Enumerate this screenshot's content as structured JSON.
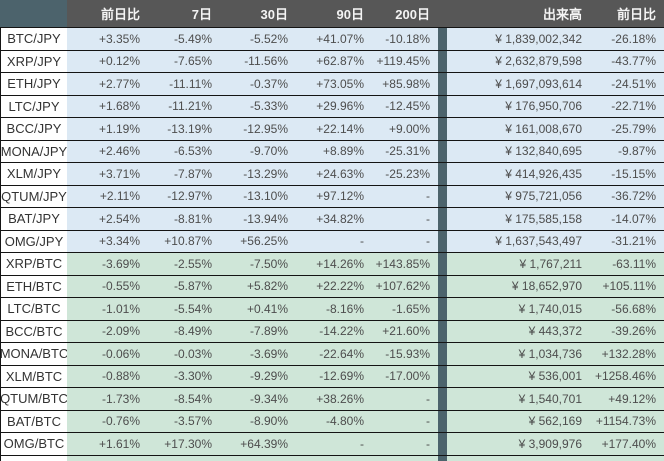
{
  "header": {
    "pair": "",
    "change_1d": "前日比",
    "d7": "7日",
    "d30": "30日",
    "d90": "90日",
    "d200": "200日",
    "volume": "出来高",
    "volume_change_1d": "前日比"
  },
  "rows": [
    {
      "pair": "BTC/JPY",
      "group": "jpy",
      "change_1d": "+3.35%",
      "d7": "-5.49%",
      "d30": "-5.52%",
      "d90": "+41.07%",
      "d200": "-10.18%",
      "volume": "¥ 1,839,002,342",
      "volume_change_1d": "-26.18%"
    },
    {
      "pair": "XRP/JPY",
      "group": "jpy",
      "change_1d": "+0.12%",
      "d7": "-7.65%",
      "d30": "-11.56%",
      "d90": "+62.87%",
      "d200": "+119.45%",
      "volume": "¥ 2,632,879,598",
      "volume_change_1d": "-43.77%"
    },
    {
      "pair": "ETH/JPY",
      "group": "jpy",
      "change_1d": "+2.77%",
      "d7": "-11.11%",
      "d30": "-0.37%",
      "d90": "+73.05%",
      "d200": "+85.98%",
      "volume": "¥ 1,697,093,614",
      "volume_change_1d": "-24.51%"
    },
    {
      "pair": "LTC/JPY",
      "group": "jpy",
      "change_1d": "+1.68%",
      "d7": "-11.21%",
      "d30": "-5.33%",
      "d90": "+29.96%",
      "d200": "-12.45%",
      "volume": "¥ 176,950,706",
      "volume_change_1d": "-22.71%"
    },
    {
      "pair": "BCC/JPY",
      "group": "jpy",
      "change_1d": "+1.19%",
      "d7": "-13.19%",
      "d30": "-12.95%",
      "d90": "+22.14%",
      "d200": "+9.00%",
      "volume": "¥ 161,008,670",
      "volume_change_1d": "-25.79%"
    },
    {
      "pair": "MONA/JPY",
      "group": "jpy",
      "change_1d": "+2.46%",
      "d7": "-6.53%",
      "d30": "-9.70%",
      "d90": "+8.89%",
      "d200": "-25.31%",
      "volume": "¥ 132,840,695",
      "volume_change_1d": "-9.87%"
    },
    {
      "pair": "XLM/JPY",
      "group": "jpy",
      "change_1d": "+3.71%",
      "d7": "-7.87%",
      "d30": "-13.29%",
      "d90": "+24.63%",
      "d200": "-25.23%",
      "volume": "¥ 414,926,435",
      "volume_change_1d": "-15.15%"
    },
    {
      "pair": "QTUM/JPY",
      "group": "jpy",
      "change_1d": "+2.11%",
      "d7": "-12.97%",
      "d30": "-13.10%",
      "d90": "+97.12%",
      "d200": "-",
      "volume": "¥ 975,721,056",
      "volume_change_1d": "-36.72%"
    },
    {
      "pair": "BAT/JPY",
      "group": "jpy",
      "change_1d": "+2.54%",
      "d7": "-8.81%",
      "d30": "-13.94%",
      "d90": "+34.82%",
      "d200": "-",
      "volume": "¥ 175,585,158",
      "volume_change_1d": "-14.07%"
    },
    {
      "pair": "OMG/JPY",
      "group": "jpy",
      "change_1d": "+3.34%",
      "d7": "+10.87%",
      "d30": "+56.25%",
      "d90": "-",
      "d200": "-",
      "volume": "¥ 1,637,543,497",
      "volume_change_1d": "-31.21%"
    },
    {
      "pair": "XRP/BTC",
      "group": "btc",
      "change_1d": "-3.69%",
      "d7": "-2.55%",
      "d30": "-7.50%",
      "d90": "+14.26%",
      "d200": "+143.85%",
      "volume": "¥ 1,767,211",
      "volume_change_1d": "-63.11%"
    },
    {
      "pair": "ETH/BTC",
      "group": "btc",
      "change_1d": "-0.55%",
      "d7": "-5.87%",
      "d30": "+5.82%",
      "d90": "+22.22%",
      "d200": "+107.62%",
      "volume": "¥ 18,652,970",
      "volume_change_1d": "+105.11%"
    },
    {
      "pair": "LTC/BTC",
      "group": "btc",
      "change_1d": "-1.01%",
      "d7": "-5.54%",
      "d30": "+0.41%",
      "d90": "-8.16%",
      "d200": "-1.65%",
      "volume": "¥ 1,740,015",
      "volume_change_1d": "-56.68%"
    },
    {
      "pair": "BCC/BTC",
      "group": "btc",
      "change_1d": "-2.09%",
      "d7": "-8.49%",
      "d30": "-7.89%",
      "d90": "-14.22%",
      "d200": "+21.60%",
      "volume": "¥ 443,372",
      "volume_change_1d": "-39.26%"
    },
    {
      "pair": "MONA/BTC",
      "group": "btc",
      "change_1d": "-0.06%",
      "d7": "-0.03%",
      "d30": "-3.69%",
      "d90": "-22.64%",
      "d200": "-15.93%",
      "volume": "¥ 1,034,736",
      "volume_change_1d": "+132.28%"
    },
    {
      "pair": "XLM/BTC",
      "group": "btc",
      "change_1d": "-0.88%",
      "d7": "-3.30%",
      "d30": "-9.29%",
      "d90": "-12.69%",
      "d200": "-17.00%",
      "volume": "¥ 536,001",
      "volume_change_1d": "+1258.46%"
    },
    {
      "pair": "QTUM/BTC",
      "group": "btc",
      "change_1d": "-1.73%",
      "d7": "-8.54%",
      "d30": "-9.34%",
      "d90": "+38.26%",
      "d200": "-",
      "volume": "¥ 1,540,701",
      "volume_change_1d": "+49.12%"
    },
    {
      "pair": "BAT/BTC",
      "group": "btc",
      "change_1d": "-0.76%",
      "d7": "-3.57%",
      "d30": "-8.90%",
      "d90": "-4.80%",
      "d200": "-",
      "volume": "¥ 562,169",
      "volume_change_1d": "+1154.73%"
    },
    {
      "pair": "OMG/BTC",
      "group": "btc",
      "change_1d": "+1.61%",
      "d7": "+17.30%",
      "d30": "+64.39%",
      "d90": "-",
      "d200": "-",
      "volume": "¥ 3,909,976",
      "volume_change_1d": "+177.40%"
    }
  ],
  "colors": {
    "header_bg": "#575757",
    "accent_slate": "#4c636c",
    "jpy_row_bg": "#dce9f4",
    "btc_row_bg": "#cfe6d8",
    "border": "#141414",
    "value_text": "#4d4d4d",
    "header_text": "#f4f4f4"
  }
}
